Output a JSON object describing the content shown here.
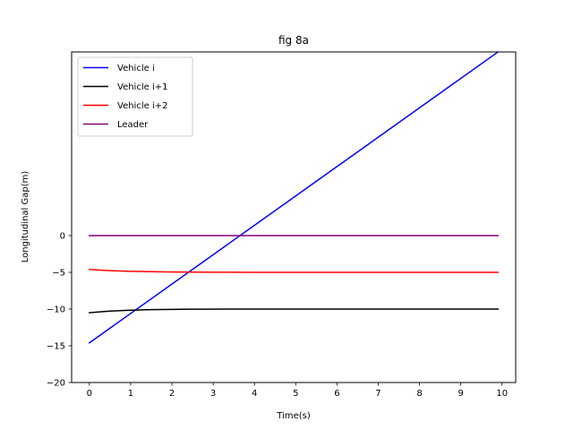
{
  "chart_data": {
    "type": "line",
    "title": "fig 8a",
    "xlabel": "Time(s)",
    "ylabel": "Longitudinal Gap(m)",
    "xlim": [
      -0.43,
      10.33
    ],
    "ylim": [
      -20,
      25
    ],
    "xticks": [
      0,
      1,
      2,
      3,
      4,
      5,
      6,
      7,
      8,
      9,
      10
    ],
    "yticks": [
      -20,
      -15,
      -10,
      -5,
      0
    ],
    "grid": false,
    "legend_position": "upper-left",
    "series": [
      {
        "name": "Vehicle i",
        "color": "#0000ff",
        "x": [
          0,
          9.9
        ],
        "y": [
          -14.6,
          25.0
        ]
      },
      {
        "name": "Vehicle i+1",
        "color": "#000000",
        "x": [
          0,
          0.25,
          0.5,
          0.75,
          1,
          1.5,
          2,
          2.5,
          3,
          4,
          5,
          6,
          7,
          8,
          9,
          9.9
        ],
        "y": [
          -10.5,
          -10.38,
          -10.28,
          -10.21,
          -10.15,
          -10.08,
          -10.04,
          -10.02,
          -10.01,
          -10.0,
          -10.0,
          -10.0,
          -10.0,
          -10.0,
          -10.0,
          -10.0
        ]
      },
      {
        "name": "Vehicle i+2",
        "color": "#ff0000",
        "x": [
          0,
          0.25,
          0.5,
          0.75,
          1,
          1.5,
          2,
          2.5,
          3,
          4,
          5,
          6,
          7,
          8,
          9,
          9.9
        ],
        "y": [
          -4.6,
          -4.7,
          -4.77,
          -4.82,
          -4.86,
          -4.91,
          -4.95,
          -4.97,
          -4.98,
          -5.0,
          -5.0,
          -5.0,
          -5.0,
          -5.0,
          -5.0,
          -5.0
        ]
      },
      {
        "name": "Leader",
        "color": "#800080",
        "x": [
          0,
          9.9
        ],
        "y": [
          0,
          0
        ]
      }
    ]
  }
}
